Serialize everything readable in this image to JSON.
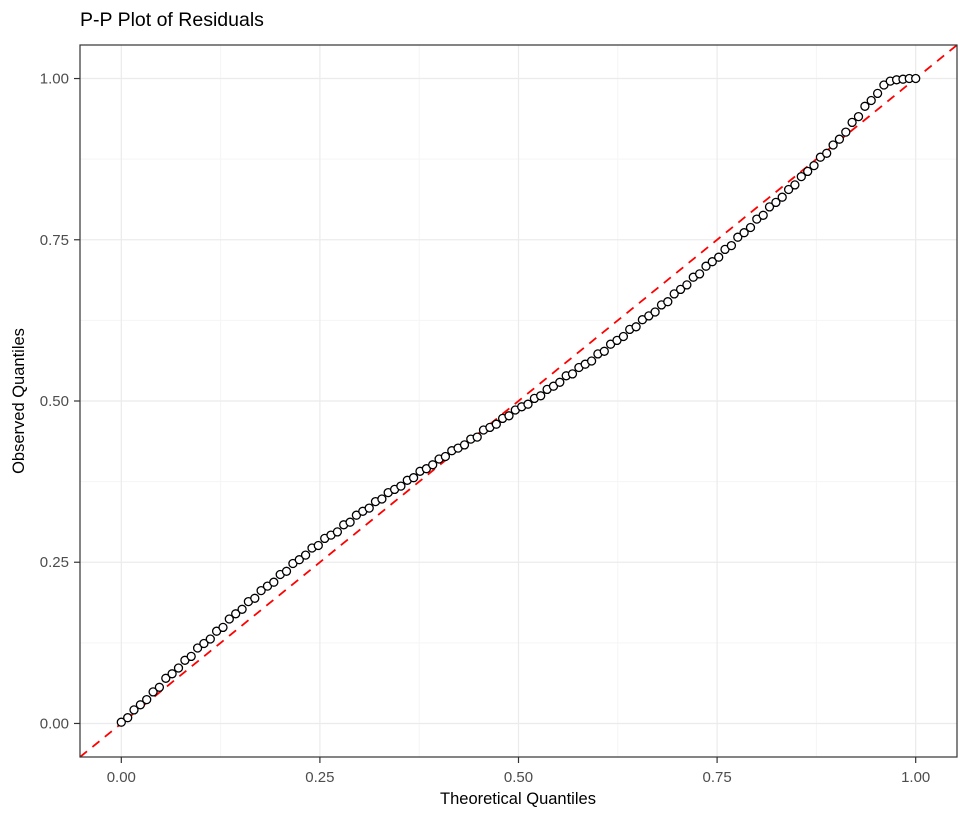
{
  "chart_data": {
    "type": "scatter",
    "title": "P-P Plot of Residuals",
    "xlabel": "Theoretical Quantiles",
    "ylabel": "Observed Quantiles",
    "xlim": [
      -0.052,
      1.052
    ],
    "ylim": [
      -0.052,
      1.052
    ],
    "grid": "on",
    "legend": "none",
    "x_ticks": [
      {
        "v": 0,
        "label": "0.00"
      },
      {
        "v": 0.25,
        "label": "0.25"
      },
      {
        "v": 0.5,
        "label": "0.50"
      },
      {
        "v": 0.75,
        "label": "0.75"
      },
      {
        "v": 1,
        "label": "1.00"
      }
    ],
    "y_ticks": [
      {
        "v": 0,
        "label": "0.00"
      },
      {
        "v": 0.25,
        "label": "0.25"
      },
      {
        "v": 0.5,
        "label": "0.50"
      },
      {
        "v": 0.75,
        "label": "0.75"
      },
      {
        "v": 1,
        "label": "1.00"
      }
    ],
    "minor_grid": [
      0.125,
      0.375,
      0.625,
      0.875
    ],
    "reference_line": {
      "slope": 1,
      "intercept": 0,
      "style": "dashed",
      "color": "#ff0000"
    },
    "series": [
      {
        "name": "residual-percentiles",
        "marker": "open-circle",
        "points": [
          [
            0.0,
            0.002
          ],
          [
            0.008,
            0.009
          ],
          [
            0.016,
            0.021
          ],
          [
            0.024,
            0.029
          ],
          [
            0.032,
            0.037
          ],
          [
            0.04,
            0.049
          ],
          [
            0.048,
            0.056
          ],
          [
            0.056,
            0.07
          ],
          [
            0.064,
            0.077
          ],
          [
            0.072,
            0.086
          ],
          [
            0.08,
            0.098
          ],
          [
            0.088,
            0.104
          ],
          [
            0.096,
            0.117
          ],
          [
            0.104,
            0.124
          ],
          [
            0.112,
            0.131
          ],
          [
            0.12,
            0.143
          ],
          [
            0.128,
            0.149
          ],
          [
            0.136,
            0.162
          ],
          [
            0.144,
            0.17
          ],
          [
            0.152,
            0.177
          ],
          [
            0.16,
            0.189
          ],
          [
            0.168,
            0.194
          ],
          [
            0.176,
            0.206
          ],
          [
            0.184,
            0.213
          ],
          [
            0.192,
            0.219
          ],
          [
            0.2,
            0.231
          ],
          [
            0.208,
            0.236
          ],
          [
            0.216,
            0.248
          ],
          [
            0.224,
            0.254
          ],
          [
            0.232,
            0.261
          ],
          [
            0.24,
            0.272
          ],
          [
            0.248,
            0.276
          ],
          [
            0.256,
            0.287
          ],
          [
            0.264,
            0.292
          ],
          [
            0.272,
            0.297
          ],
          [
            0.28,
            0.308
          ],
          [
            0.288,
            0.312
          ],
          [
            0.296,
            0.323
          ],
          [
            0.304,
            0.329
          ],
          [
            0.312,
            0.334
          ],
          [
            0.32,
            0.344
          ],
          [
            0.328,
            0.348
          ],
          [
            0.336,
            0.358
          ],
          [
            0.344,
            0.363
          ],
          [
            0.352,
            0.368
          ],
          [
            0.36,
            0.377
          ],
          [
            0.368,
            0.381
          ],
          [
            0.376,
            0.391
          ],
          [
            0.384,
            0.395
          ],
          [
            0.392,
            0.401
          ],
          [
            0.4,
            0.41
          ],
          [
            0.408,
            0.414
          ],
          [
            0.416,
            0.423
          ],
          [
            0.424,
            0.427
          ],
          [
            0.432,
            0.432
          ],
          [
            0.44,
            0.441
          ],
          [
            0.448,
            0.444
          ],
          [
            0.456,
            0.455
          ],
          [
            0.464,
            0.459
          ],
          [
            0.472,
            0.464
          ],
          [
            0.48,
            0.473
          ],
          [
            0.488,
            0.477
          ],
          [
            0.496,
            0.486
          ],
          [
            0.504,
            0.491
          ],
          [
            0.512,
            0.495
          ],
          [
            0.52,
            0.504
          ],
          [
            0.528,
            0.508
          ],
          [
            0.536,
            0.518
          ],
          [
            0.544,
            0.523
          ],
          [
            0.552,
            0.529
          ],
          [
            0.56,
            0.539
          ],
          [
            0.568,
            0.542
          ],
          [
            0.576,
            0.552
          ],
          [
            0.584,
            0.557
          ],
          [
            0.592,
            0.562
          ],
          [
            0.6,
            0.573
          ],
          [
            0.608,
            0.577
          ],
          [
            0.616,
            0.588
          ],
          [
            0.624,
            0.594
          ],
          [
            0.632,
            0.6
          ],
          [
            0.64,
            0.611
          ],
          [
            0.648,
            0.615
          ],
          [
            0.656,
            0.626
          ],
          [
            0.664,
            0.632
          ],
          [
            0.672,
            0.638
          ],
          [
            0.68,
            0.649
          ],
          [
            0.688,
            0.654
          ],
          [
            0.696,
            0.666
          ],
          [
            0.704,
            0.673
          ],
          [
            0.712,
            0.68
          ],
          [
            0.72,
            0.692
          ],
          [
            0.728,
            0.697
          ],
          [
            0.736,
            0.709
          ],
          [
            0.744,
            0.716
          ],
          [
            0.752,
            0.723
          ],
          [
            0.76,
            0.735
          ],
          [
            0.768,
            0.741
          ],
          [
            0.776,
            0.754
          ],
          [
            0.784,
            0.761
          ],
          [
            0.792,
            0.769
          ],
          [
            0.8,
            0.782
          ],
          [
            0.808,
            0.788
          ],
          [
            0.816,
            0.801
          ],
          [
            0.824,
            0.808
          ],
          [
            0.832,
            0.816
          ],
          [
            0.84,
            0.828
          ],
          [
            0.848,
            0.835
          ],
          [
            0.856,
            0.848
          ],
          [
            0.864,
            0.856
          ],
          [
            0.872,
            0.865
          ],
          [
            0.88,
            0.878
          ],
          [
            0.888,
            0.884
          ],
          [
            0.896,
            0.897
          ],
          [
            0.904,
            0.906
          ],
          [
            0.912,
            0.917
          ],
          [
            0.92,
            0.932
          ],
          [
            0.928,
            0.941
          ],
          [
            0.936,
            0.957
          ],
          [
            0.944,
            0.966
          ],
          [
            0.952,
            0.977
          ],
          [
            0.96,
            0.99
          ],
          [
            0.968,
            0.996
          ],
          [
            0.976,
            0.998
          ],
          [
            0.984,
            0.999
          ],
          [
            0.992,
            1.0
          ],
          [
            1.0,
            1.0
          ]
        ]
      }
    ]
  },
  "style": {
    "background": "#ffffff",
    "point_stroke": "#000000",
    "point_fill": "#ffffff",
    "grid_major_color": "#ebebeb",
    "grid_minor_color": "#f5f5f5",
    "panel_border_color": "#333333",
    "tick_color": "#333333",
    "tick_label_color": "#4d4d4d",
    "text_color": "#000000",
    "reference_line_color": "#ff0000"
  }
}
